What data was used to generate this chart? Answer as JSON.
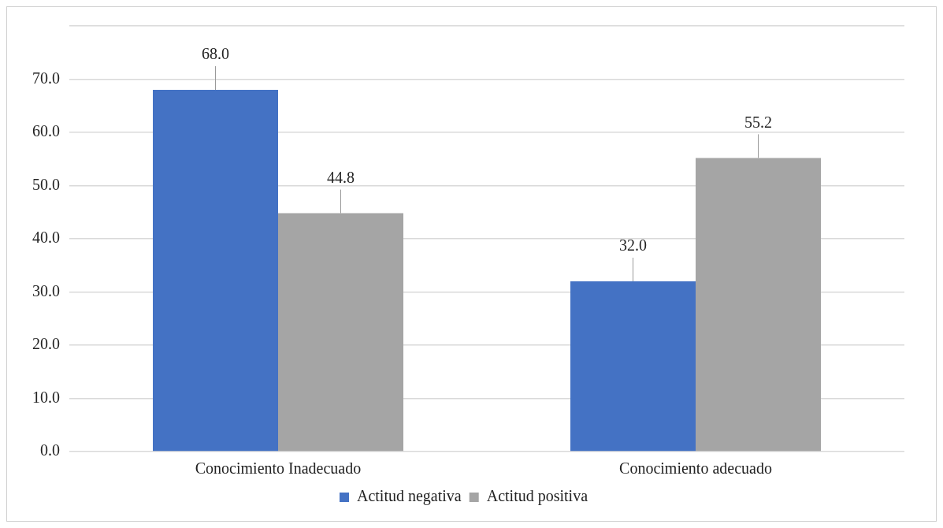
{
  "chart_data": {
    "type": "bar",
    "categories": [
      "Conocimiento Inadecuado",
      "Conocimiento adecuado"
    ],
    "series": [
      {
        "name": "Actitud negativa",
        "color": "#4472c4",
        "values": [
          68.0,
          32.0
        ],
        "value_labels": [
          "68.0",
          "32.0"
        ]
      },
      {
        "name": "Actitud positiva",
        "color": "#a5a5a5",
        "values": [
          44.8,
          55.2
        ],
        "value_labels": [
          "44.8",
          "55.2"
        ]
      }
    ],
    "ylim": [
      0,
      80
    ],
    "yticks": [
      {
        "value": 0,
        "label": "0.0"
      },
      {
        "value": 10,
        "label": "10.0"
      },
      {
        "value": 20,
        "label": "20.0"
      },
      {
        "value": 30,
        "label": "30.0"
      },
      {
        "value": 40,
        "label": "40.0"
      },
      {
        "value": 50,
        "label": "50.0"
      },
      {
        "value": 60,
        "label": "60.0"
      },
      {
        "value": 70,
        "label": "70.0"
      },
      {
        "value": 80,
        "label": null
      }
    ],
    "grid": "y",
    "legend": "bottom"
  }
}
